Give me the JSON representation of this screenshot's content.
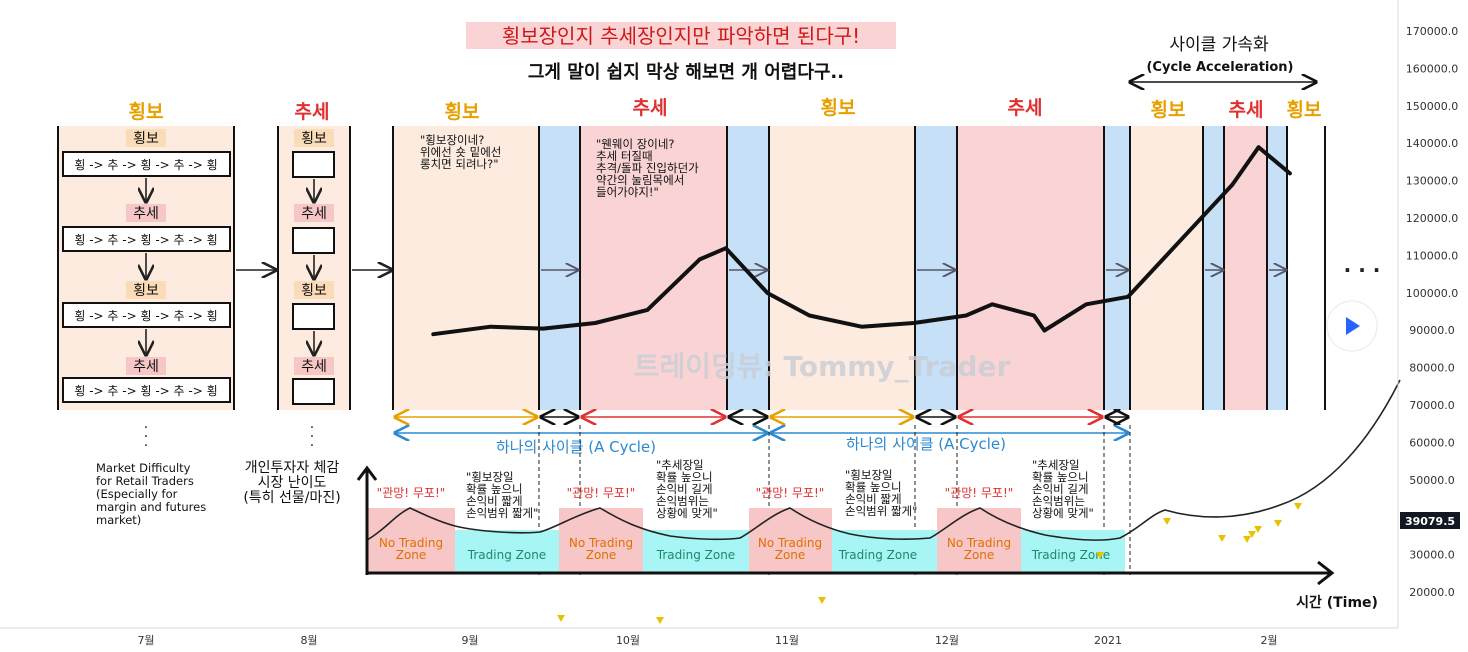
{
  "header": {
    "title": "횡보장인지 추세장인지만 파악하면 된다구!",
    "subtitle": "그게 말이 쉽지 막상 해보면 개 어렵다구..",
    "accel_title": "사이클 가속화",
    "accel_sub": "(Cycle Acceleration)"
  },
  "regime_labels": {
    "sideways": "횡보",
    "trend": "추세"
  },
  "pattern_text": "횡 -> 추 -> 횡 -> 추 -> 횡",
  "left_col_tags": [
    "횡보",
    "추세",
    "횡보",
    "추세"
  ],
  "mid_col_tags": [
    "횡보",
    "추세",
    "횡보",
    "추세"
  ],
  "dots": ". . .",
  "notes": {
    "sideways_q": "\"횡보장이네?\n위에선 숏 밑에선\n롱치면 되려나?\"",
    "trend_q": "\"웬웨이 장이네?\n추세 터질때\n추격/돌파 진입하던가\n약간의 눌림목에서\n들어가야지!\"",
    "sideways_tip": "\"횡보장일\n확률 높으니\n손익비 짧게\n손익범위 짧게\"",
    "trend_tip": "\"추세장일\n확률 높으니\n손익비 길게\n손익범위는\n상황에 맞게\""
  },
  "cycle_label": "하나의 사이클 (A Cycle)",
  "difficulty": {
    "en": "Market Difficulty\nfor Retail Traders\n(Especially for\nmargin and futures\nmarket)",
    "kr": "개인투자자 체감\n시장 난이도\n(특히 선물/마진)"
  },
  "zones": {
    "no_trade": "No Trading\nZone",
    "trade": "Trading Zone",
    "panic": "\"관망! 무포!\""
  },
  "time_label": "시간 (Time)",
  "watermark": "트레이딩뷰: Tommy_Trader",
  "price_axis": {
    "ticks": [
      "170000.0",
      "160000.0",
      "150000.0",
      "140000.0",
      "130000.0",
      "120000.0",
      "110000.0",
      "100000.0",
      "90000.0",
      "80000.0",
      "70000.0",
      "60000.0",
      "50000.0",
      "40000.0",
      "30000.0",
      "20000.0"
    ],
    "current_price": "39079.5",
    "current_color": "#131722"
  },
  "time_axis": [
    "7월",
    "8월",
    "9월",
    "10월",
    "11월",
    "12월",
    "2021",
    "2월"
  ],
  "more_dots": "· · ·",
  "colors": {
    "sideways_fill": "#fdebe0",
    "trend_fill": "#fad4d4",
    "transition_fill": "#c5e0f7",
    "orange": "#e8a000",
    "red": "#e03030",
    "blue": "#2a8ad0",
    "no_trade_fill": "#f7c6c6",
    "trade_fill": "#a8f5f5"
  },
  "chart_data": {
    "type": "line",
    "title": "횡보장인지 추세장인지만 파악하면 된다구!",
    "xlabel": "시간 (Time)",
    "ylabel": "",
    "x_ticks": [
      "7월",
      "8월",
      "9월",
      "10월",
      "11월",
      "12월",
      "2021",
      "2월"
    ],
    "ylim": [
      15000,
      175000
    ],
    "series": [
      {
        "values_approx": [
          [
            "2020-08-25",
            90000
          ],
          [
            "2020-09-05",
            92000
          ],
          [
            "2020-09-15",
            91500
          ],
          [
            "2020-09-25",
            93000
          ],
          [
            "2020-10-05",
            96500
          ],
          [
            "2020-10-15",
            110000
          ],
          [
            "2020-10-20",
            113000
          ],
          [
            "2020-10-28",
            101000
          ],
          [
            "2020-11-05",
            95000
          ],
          [
            "2020-11-15",
            92000
          ],
          [
            "2020-11-25",
            93000
          ],
          [
            "2020-12-05",
            95000
          ],
          [
            "2020-12-10",
            98000
          ],
          [
            "2020-12-18",
            95000
          ],
          [
            "2020-12-20",
            91000
          ],
          [
            "2020-12-28",
            98000
          ],
          [
            "2021-01-05",
            100000
          ],
          [
            "2021-01-15",
            115000
          ],
          [
            "2021-01-25",
            130000
          ],
          [
            "2021-01-30",
            140000
          ],
          [
            "2021-02-05",
            133000
          ]
        ]
      }
    ],
    "grid": false
  }
}
